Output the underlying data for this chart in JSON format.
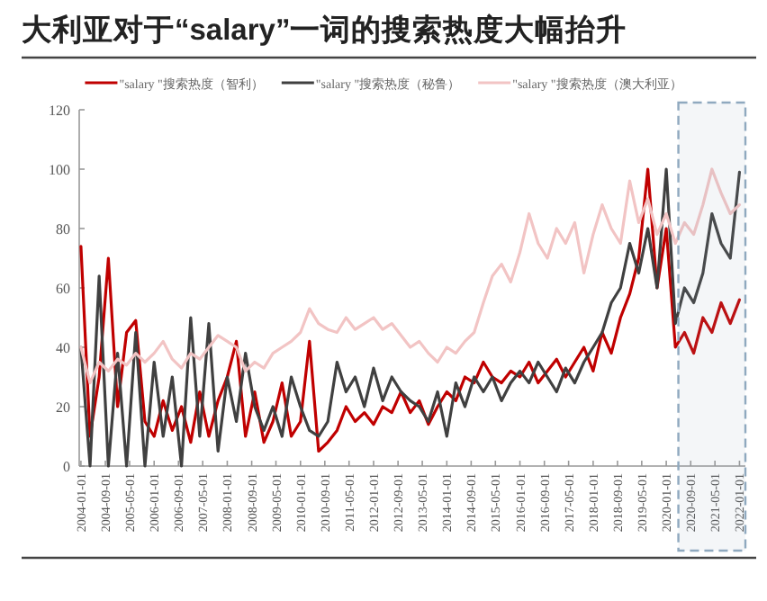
{
  "chart_data": {
    "type": "line",
    "title": "大利亚对于“salary”一词的搜索热度大幅抬升",
    "x": [
      "2004-01",
      "2004-04",
      "2004-07",
      "2004-10",
      "2005-01",
      "2005-04",
      "2005-07",
      "2005-10",
      "2006-01",
      "2006-04",
      "2006-07",
      "2006-10",
      "2007-01",
      "2007-04",
      "2007-07",
      "2007-10",
      "2008-01",
      "2008-04",
      "2008-07",
      "2008-10",
      "2009-01",
      "2009-04",
      "2009-07",
      "2009-10",
      "2010-01",
      "2010-04",
      "2010-07",
      "2010-10",
      "2011-01",
      "2011-04",
      "2011-07",
      "2011-10",
      "2012-01",
      "2012-04",
      "2012-07",
      "2012-10",
      "2013-01",
      "2013-04",
      "2013-07",
      "2013-10",
      "2014-01",
      "2014-04",
      "2014-07",
      "2014-10",
      "2015-01",
      "2015-04",
      "2015-07",
      "2015-10",
      "2016-01",
      "2016-04",
      "2016-07",
      "2016-10",
      "2017-01",
      "2017-04",
      "2017-07",
      "2017-10",
      "2018-01",
      "2018-04",
      "2018-07",
      "2018-10",
      "2019-01",
      "2019-04",
      "2019-07",
      "2019-10",
      "2020-01",
      "2020-04",
      "2020-07",
      "2020-10",
      "2021-01",
      "2021-04",
      "2021-07",
      "2021-10",
      "2022-01"
    ],
    "series": [
      {
        "name": "\"salary \"搜索热度（智利）",
        "color": "#c00000",
        "values": [
          74,
          10,
          30,
          70,
          20,
          45,
          49,
          15,
          10,
          22,
          12,
          20,
          8,
          25,
          10,
          22,
          30,
          42,
          10,
          25,
          8,
          15,
          28,
          10,
          15,
          42,
          5,
          8,
          12,
          20,
          15,
          18,
          14,
          20,
          18,
          25,
          18,
          22,
          14,
          20,
          25,
          22,
          30,
          28,
          35,
          30,
          28,
          32,
          30,
          35,
          28,
          32,
          36,
          30,
          35,
          40,
          32,
          45,
          38,
          50,
          58,
          70,
          100,
          60,
          80,
          40,
          45,
          38,
          50,
          45,
          55,
          48,
          56
        ]
      },
      {
        "name": "\"salary \"搜索热度（秘鲁）",
        "color": "#404040",
        "values": [
          40,
          0,
          64,
          0,
          38,
          0,
          45,
          0,
          35,
          10,
          30,
          0,
          50,
          10,
          48,
          5,
          30,
          15,
          38,
          20,
          12,
          20,
          10,
          30,
          20,
          12,
          10,
          15,
          35,
          25,
          30,
          20,
          33,
          22,
          30,
          25,
          22,
          20,
          15,
          25,
          10,
          28,
          20,
          30,
          25,
          30,
          22,
          28,
          32,
          28,
          35,
          30,
          25,
          33,
          28,
          35,
          40,
          45,
          55,
          60,
          75,
          65,
          80,
          60,
          100,
          48,
          60,
          55,
          65,
          85,
          75,
          70,
          99
        ]
      },
      {
        "name": "\"salary \"搜索热度（澳大利亚）",
        "color": "#f2c4c4",
        "values": [
          40,
          28,
          35,
          32,
          36,
          34,
          38,
          35,
          38,
          42,
          36,
          33,
          38,
          36,
          40,
          44,
          42,
          40,
          32,
          35,
          33,
          38,
          40,
          42,
          45,
          53,
          48,
          46,
          45,
          50,
          46,
          48,
          50,
          46,
          48,
          44,
          40,
          42,
          38,
          35,
          40,
          38,
          42,
          45,
          55,
          64,
          68,
          62,
          72,
          85,
          75,
          70,
          80,
          75,
          82,
          65,
          78,
          88,
          80,
          75,
          96,
          82,
          90,
          78,
          85,
          75,
          82,
          78,
          88,
          100,
          92,
          85,
          88
        ]
      }
    ],
    "xlim": [
      "2003-12-15",
      "2022-03"
    ],
    "xticks": [
      "2004-01-01",
      "2004-09-01",
      "2005-05-01",
      "2006-01-01",
      "2006-09-01",
      "2007-05-01",
      "2008-01-01",
      "2008-09-01",
      "2009-05-01",
      "2010-01-01",
      "2010-09-01",
      "2011-05-01",
      "2012-01-01",
      "2012-09-01",
      "2013-05-01",
      "2014-01-01",
      "2014-09-01",
      "2015-05-01",
      "2016-01-01",
      "2016-09-01",
      "2017-05-01",
      "2018-01-01",
      "2018-09-01",
      "2019-05-01",
      "2020-01-01",
      "2020-09-01",
      "2021-05-01",
      "2022-01-01"
    ],
    "ylim": [
      0,
      120
    ],
    "yticks": [
      0,
      20,
      40,
      60,
      80,
      100,
      120
    ],
    "bands": [
      {
        "axis": "x",
        "from": "2020-05",
        "to": "2022-03",
        "label": null,
        "color": "#8fa9bf"
      }
    ],
    "legend": "top",
    "grid": false,
    "marker": "none",
    "line_style": "solid"
  }
}
